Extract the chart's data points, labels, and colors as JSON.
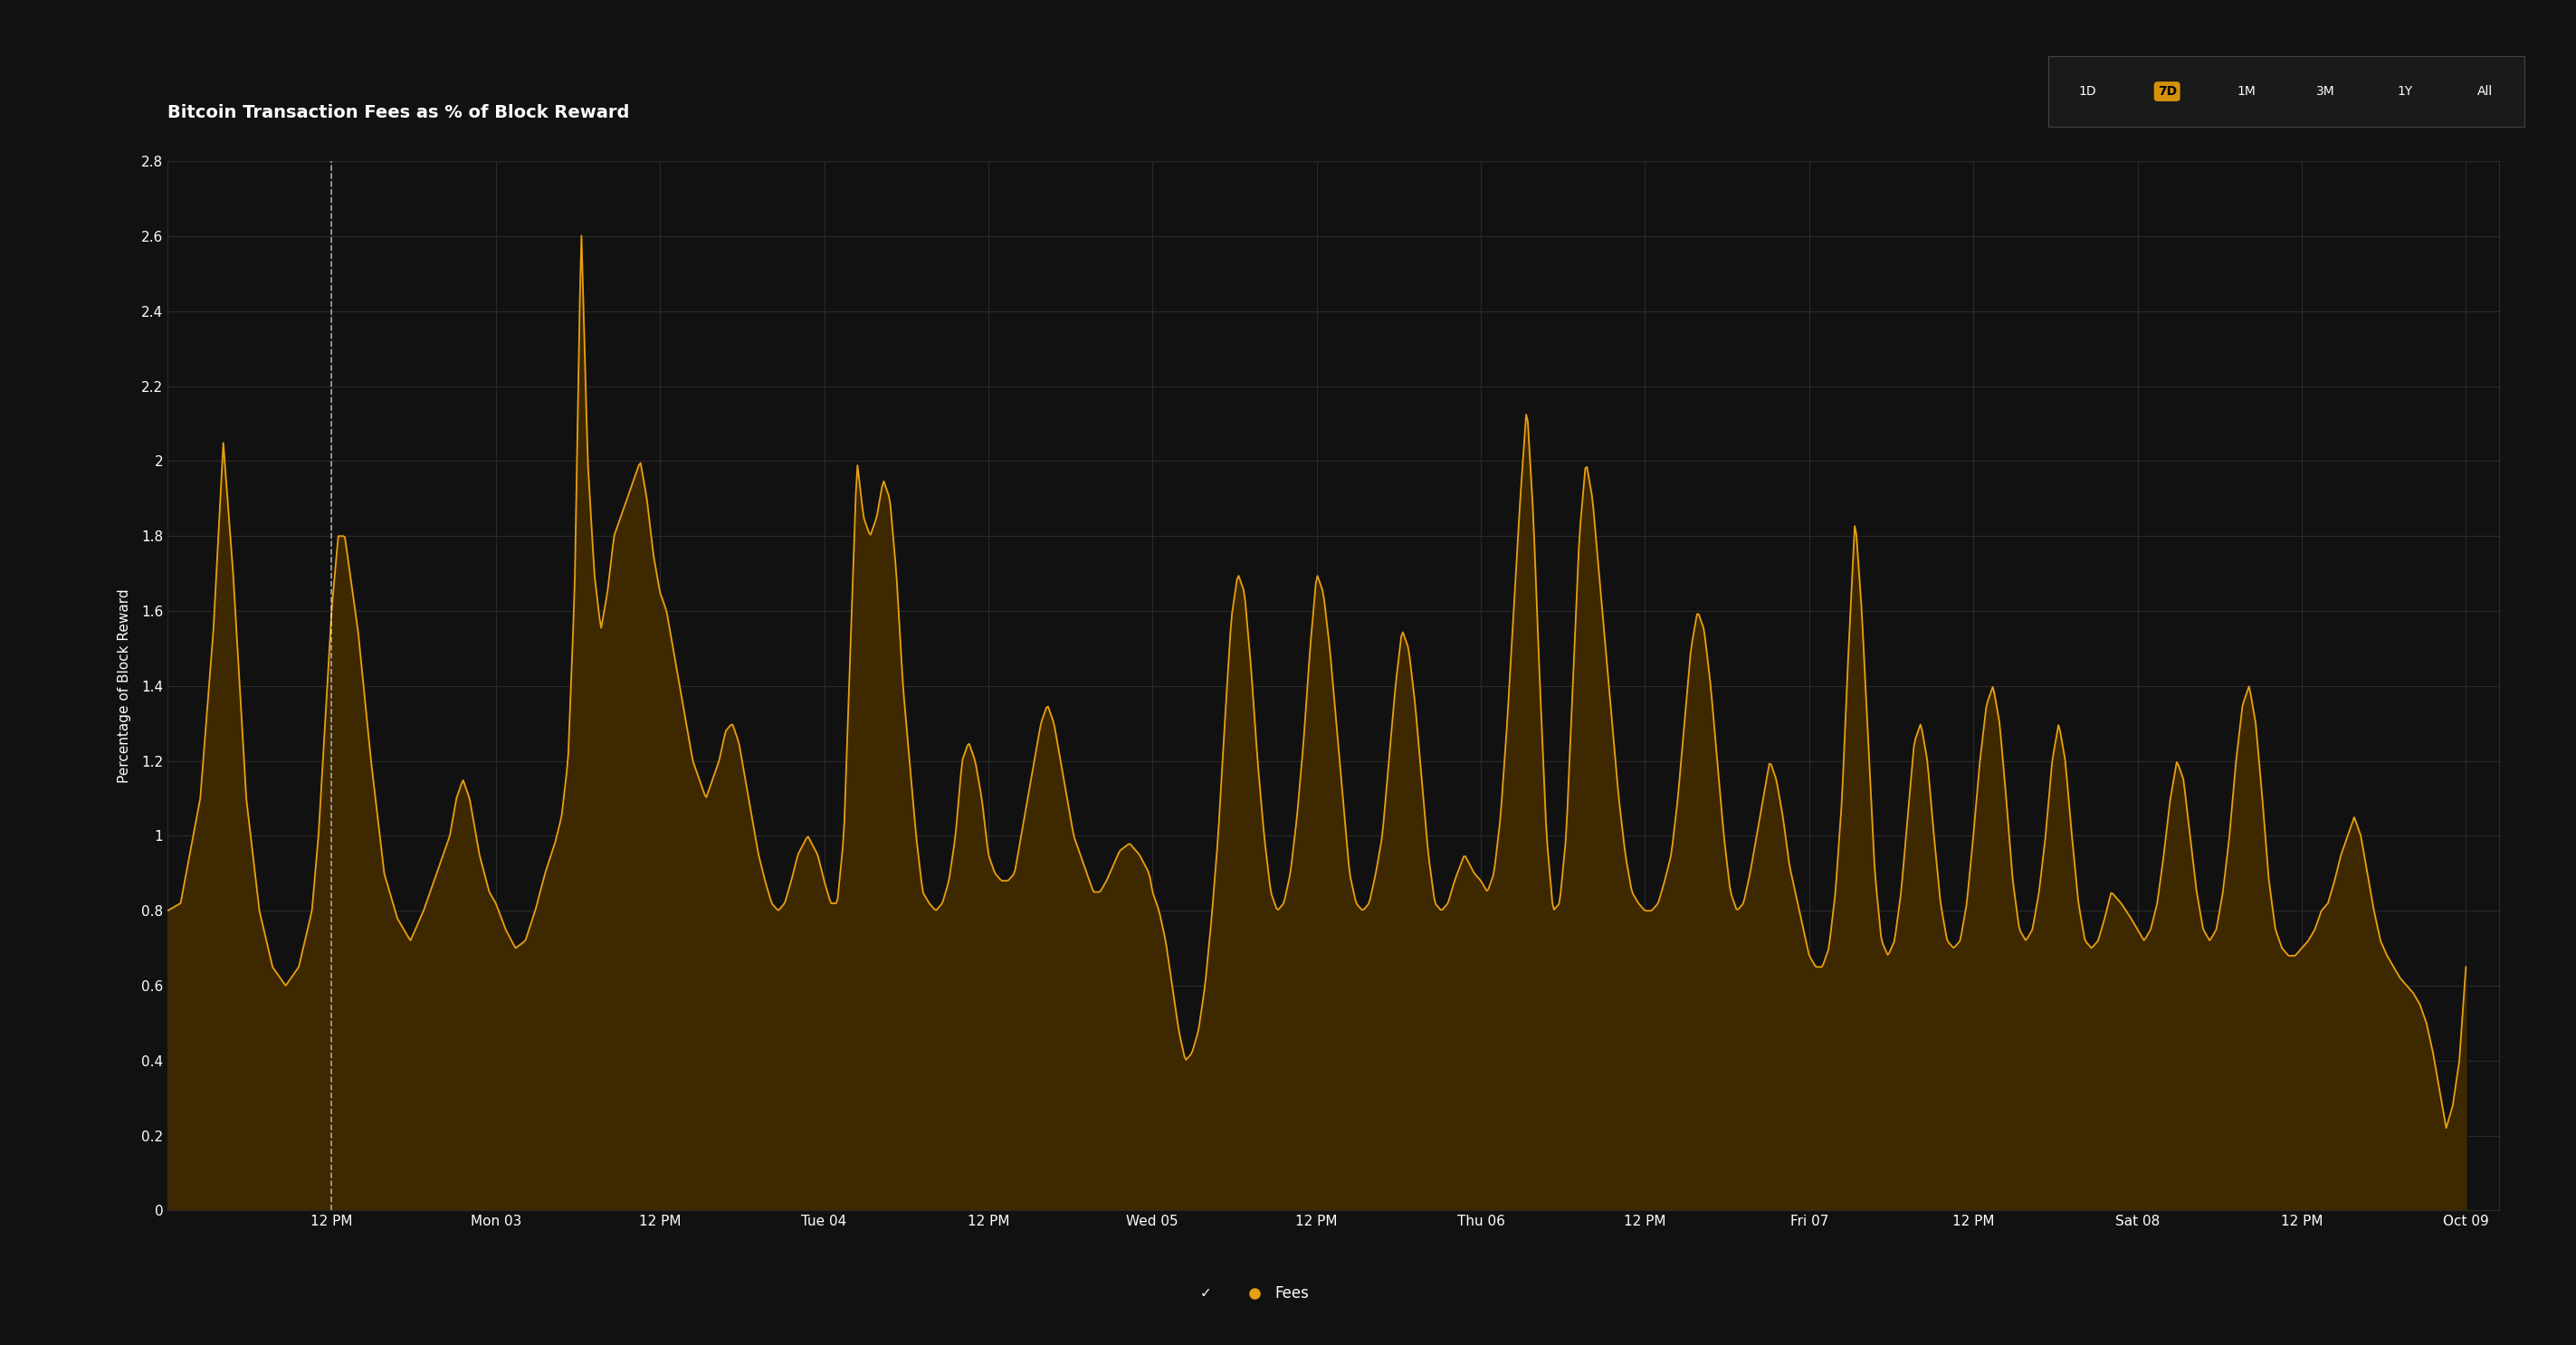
{
  "title": "Bitcoin Transaction Fees as % of Block Reward",
  "ylabel": "Percentage of Block Reward",
  "background_color": "#111111",
  "plot_bg_color": "#111111",
  "line_color": "#e8a010",
  "fill_color": "#3d2800",
  "grid_color": "#2a2a2a",
  "text_color": "#ffffff",
  "ylim": [
    0,
    2.8
  ],
  "yticks": [
    0,
    0.2,
    0.4,
    0.6,
    0.8,
    1.0,
    1.2,
    1.4,
    1.6,
    1.8,
    2.0,
    2.2,
    2.4,
    2.6,
    2.8
  ],
  "xtick_labels": [
    "12 PM",
    "Mon 03",
    "12 PM",
    "Tue 04",
    "12 PM",
    "Wed 05",
    "12 PM",
    "Thu 06",
    "12 PM",
    "Fri 07",
    "12 PM",
    "Sat 08",
    "12 PM",
    "Oct 09"
  ],
  "xtick_positions": [
    0.5,
    1.0,
    1.5,
    2.0,
    2.5,
    3.0,
    3.5,
    4.0,
    4.5,
    5.0,
    5.5,
    6.0,
    6.5,
    7.0
  ],
  "legend_label": "Fees",
  "legend_dot_color": "#e8a010",
  "title_fontsize": 14,
  "axis_fontsize": 11,
  "tick_fontsize": 11,
  "buttons": [
    "1D",
    "7D",
    "1M",
    "3M",
    "1Y",
    "All"
  ],
  "active_button": "7D",
  "active_btn_color": "#d4920a",
  "active_btn_text": "#000000",
  "btn_border_color": "#444444"
}
